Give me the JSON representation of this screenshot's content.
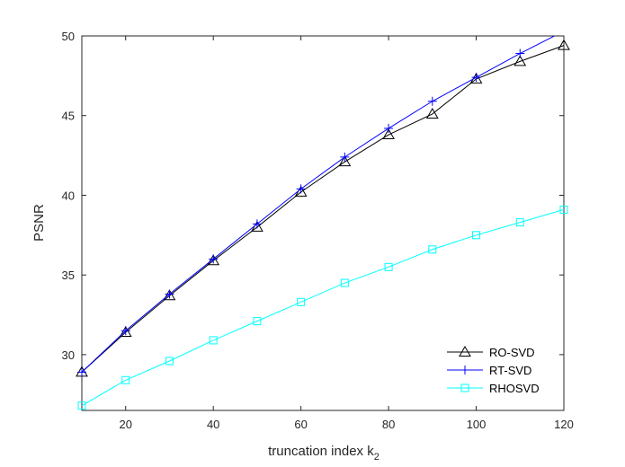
{
  "chart_data": {
    "type": "line",
    "title": "",
    "xlabel_main": "truncation index k",
    "xlabel_sub": "2",
    "ylabel": "PSNR",
    "xlim": [
      10,
      120
    ],
    "ylim": [
      26.5,
      50
    ],
    "xticks": [
      20,
      40,
      60,
      80,
      100,
      120
    ],
    "yticks": [
      30,
      35,
      40,
      45,
      50
    ],
    "grid": false,
    "legend_position": "bottom-right",
    "x": [
      10,
      20,
      30,
      40,
      50,
      60,
      70,
      80,
      90,
      100,
      110,
      120
    ],
    "series": [
      {
        "name": "RO-SVD",
        "color": "#000000",
        "marker": "triangle",
        "values": [
          28.9,
          31.4,
          33.7,
          35.9,
          38.0,
          40.2,
          42.1,
          43.8,
          45.1,
          47.3,
          48.4,
          49.4
        ]
      },
      {
        "name": "RT-SVD",
        "color": "#0000ff",
        "marker": "plus",
        "values": [
          28.9,
          31.5,
          33.8,
          36.0,
          38.2,
          40.4,
          42.4,
          44.2,
          45.9,
          47.4,
          48.9,
          50.3
        ]
      },
      {
        "name": "RHOSVD",
        "color": "#00ffff",
        "marker": "square",
        "values": [
          26.8,
          28.4,
          29.6,
          30.9,
          32.1,
          33.3,
          34.5,
          35.5,
          36.6,
          37.5,
          38.3,
          39.1
        ]
      }
    ]
  }
}
